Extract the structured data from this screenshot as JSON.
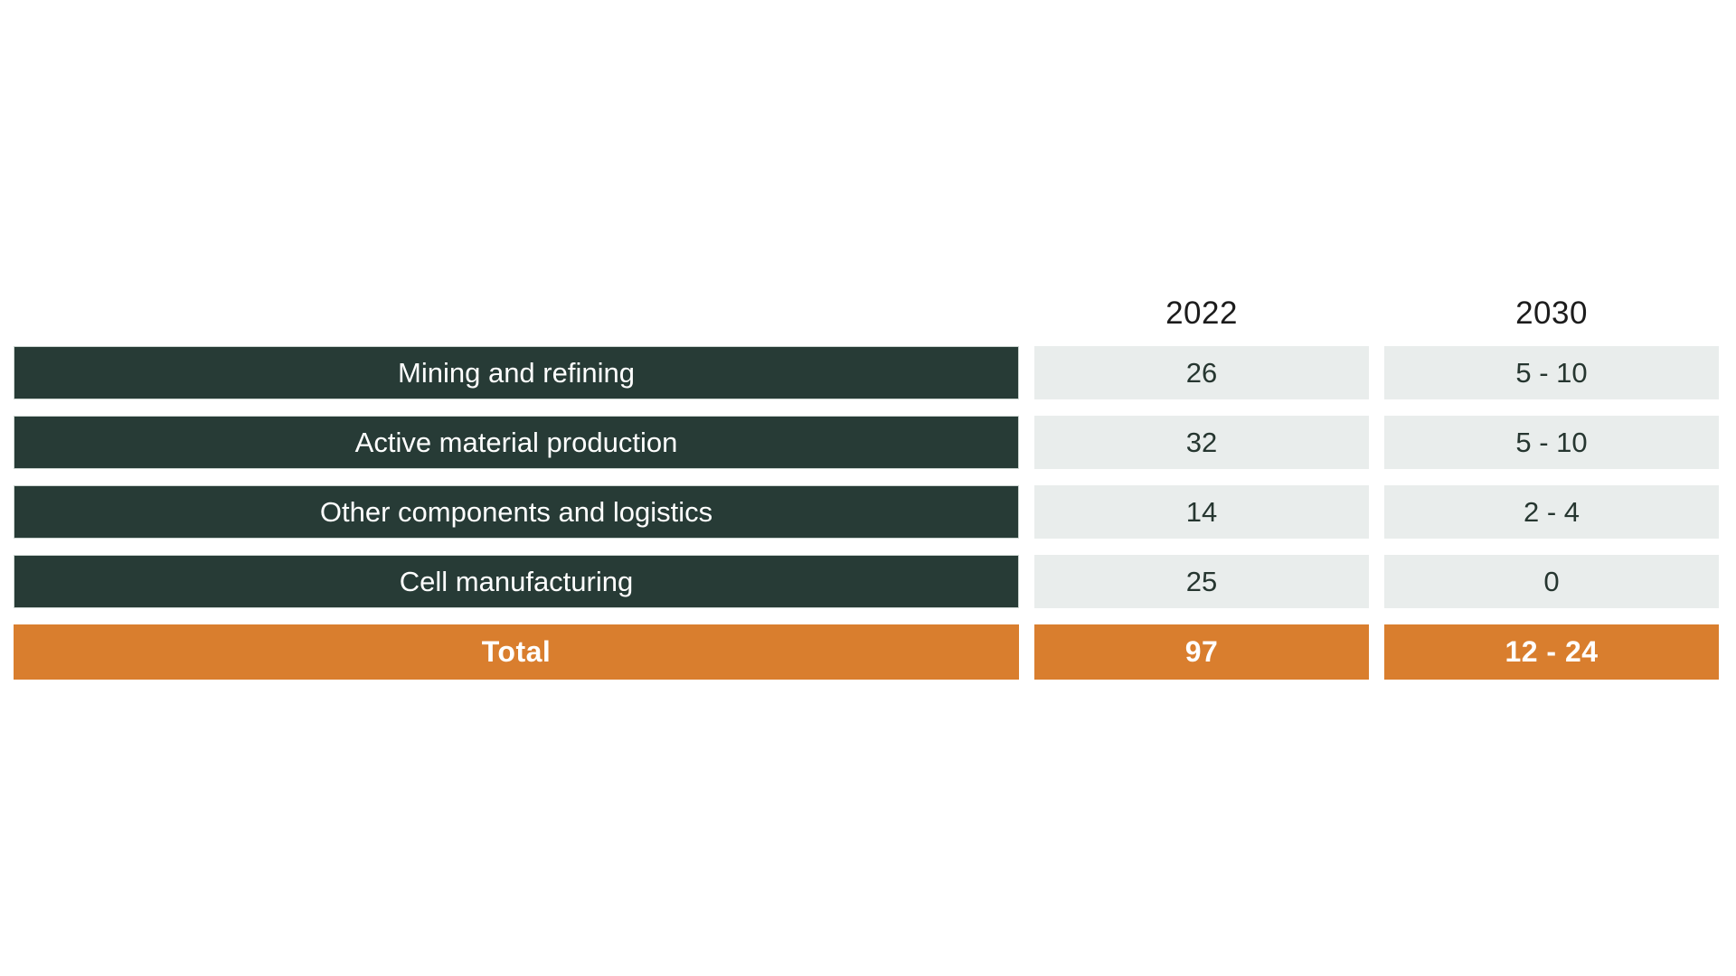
{
  "page": {
    "background": "#ffffff"
  },
  "colors": {
    "dark": "#273b36",
    "orange": "#d97e2e",
    "cell-bg": "#e9edec",
    "value-text": "#263630",
    "header-text": "#1c1c1c",
    "bar-border": "#ccd5d1"
  },
  "chart_data": {
    "type": "table",
    "title": "",
    "columns": [
      "2022",
      "2030"
    ],
    "rows": [
      {
        "label": "Mining and refining",
        "v2022": "26",
        "v2030": "5 - 10"
      },
      {
        "label": "Active material production",
        "v2022": "32",
        "v2030": "5 - 10"
      },
      {
        "label": "Other components and logistics",
        "v2022": "14",
        "v2030": "2 - 4"
      },
      {
        "label": "Cell manufacturing",
        "v2022": "25",
        "v2030": "0"
      }
    ],
    "total_row": {
      "label": "Total",
      "v2022": "97",
      "v2030": "12 - 24"
    },
    "layout": {
      "legend": "none",
      "grid": "off",
      "label_column_align": "center",
      "value_columns_align": "center"
    }
  }
}
